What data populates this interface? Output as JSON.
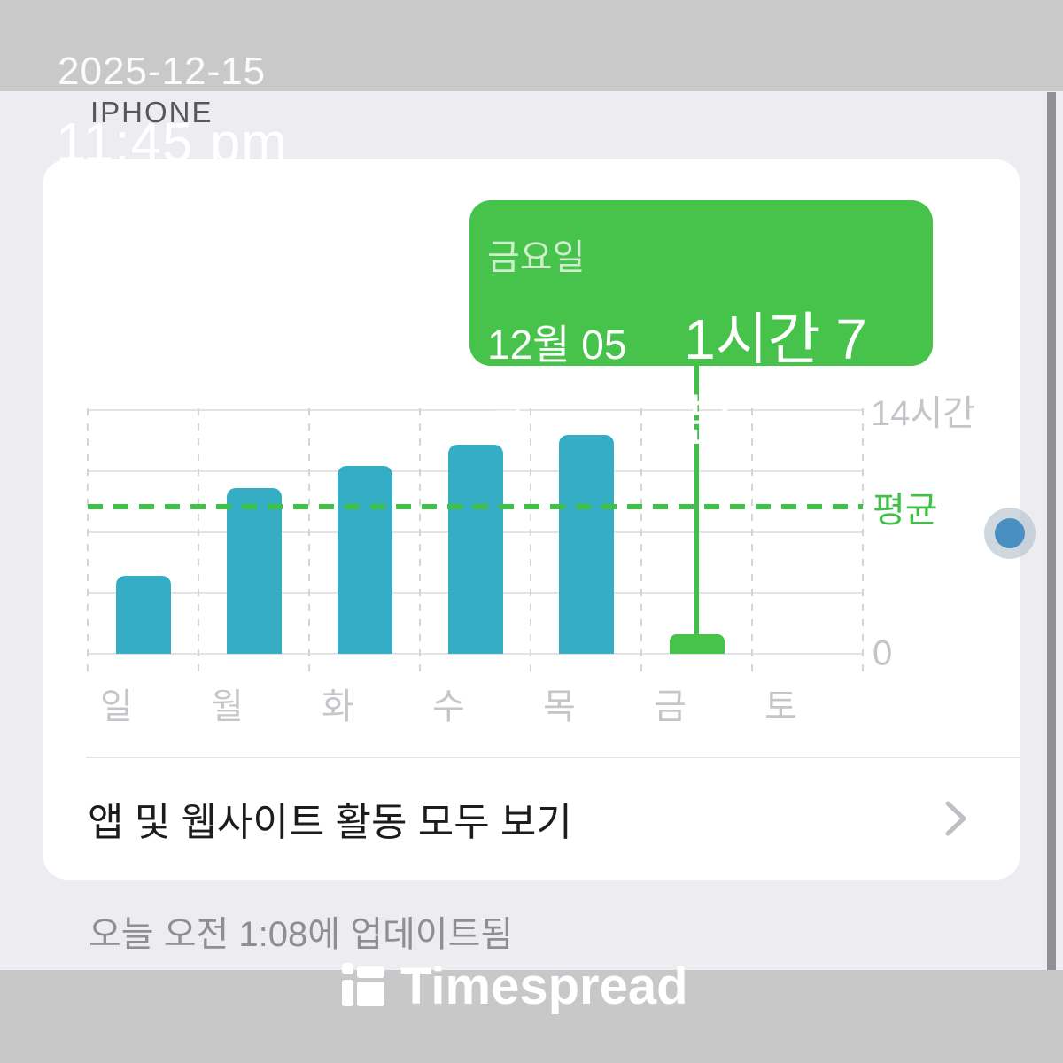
{
  "overlay": {
    "date": "2025-12-15",
    "device": "IPHONE",
    "time": "11:45 pm"
  },
  "tooltip": {
    "day": "금요일",
    "date": "12월 05일",
    "duration": "1시간 7분"
  },
  "chart_data": {
    "type": "bar",
    "title": "",
    "categories": [
      "일",
      "월",
      "화",
      "수",
      "목",
      "금",
      "토"
    ],
    "values": [
      4.5,
      9.5,
      10.8,
      12.0,
      12.6,
      1.12,
      0
    ],
    "unit": "hours",
    "ylim": [
      0,
      14
    ],
    "y_top_label": "14시간",
    "y_bottom_label": "0",
    "average_value": 8.45,
    "average_label": "평균",
    "highlight_index": 5,
    "highlight_value_label": "1시간 7분",
    "bar_color": "#35aec5",
    "highlight_color": "#47c24b",
    "grid": true,
    "legend_position": "none"
  },
  "card": {
    "see_all_label": "앱 및 웹사이트 활동 모두 보기"
  },
  "footer": {
    "updated_text": "오늘 오전 1:08에 업데이트됨"
  },
  "watermark": {
    "brand": "Timespread"
  },
  "colors": {
    "accent_green": "#47c24b",
    "bar_teal": "#35aec5",
    "annotation_blue": "#4a8fc2"
  }
}
